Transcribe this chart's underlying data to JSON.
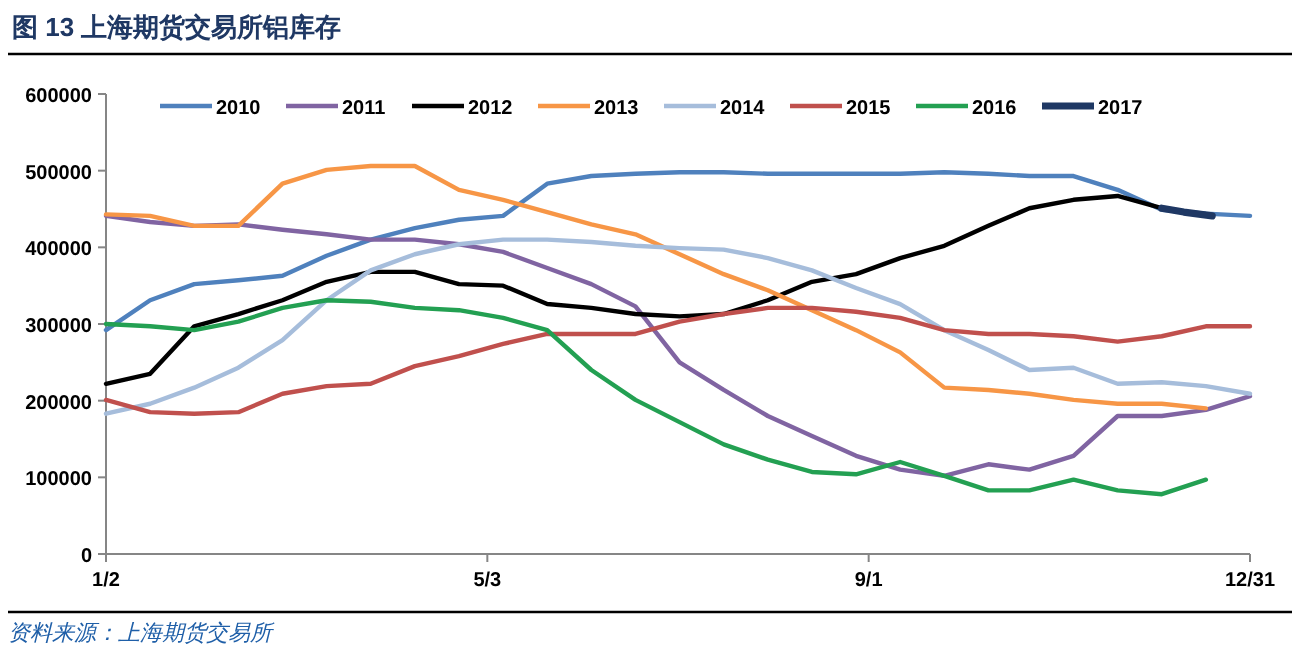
{
  "chart_data": {
    "type": "line",
    "title": "图 13    上海期货交易所铝库存",
    "annotations": [
      "资料来源：上海期货交易所"
    ],
    "x": [
      "--01-02",
      "--01-16",
      "--01-30",
      "--02-13",
      "--02-27",
      "--03-13",
      "--03-27",
      "--04-10",
      "--04-24",
      "--05-08",
      "--05-22",
      "--06-05",
      "--06-19",
      "--07-03",
      "--07-17",
      "--07-31",
      "--08-14",
      "--08-28",
      "--09-11",
      "--09-25",
      "--10-09",
      "--10-22",
      "--11-05",
      "--11-19",
      "--12-03",
      "--12-17",
      "--12-31"
    ],
    "series": [
      {
        "name": "2010",
        "color": "#4f81bd",
        "values": [
          292000,
          331000,
          352000,
          357000,
          363000,
          389000,
          410000,
          425000,
          436000,
          441000,
          483000,
          493000,
          496000,
          498000,
          498000,
          496000,
          496000,
          496000,
          496000,
          498000,
          496000,
          493000,
          493000,
          475000,
          449000,
          444000,
          441000
        ]
      },
      {
        "name": "2011",
        "color": "#8064a2",
        "values": [
          441000,
          433000,
          428000,
          430000,
          423000,
          417000,
          410000,
          410000,
          404000,
          394000,
          373000,
          352000,
          323000,
          250000,
          214000,
          180000,
          154000,
          128000,
          110000,
          102000,
          117000,
          110000,
          128000,
          180000,
          180000,
          188000,
          206000
        ]
      },
      {
        "name": "2012",
        "color": "#000000",
        "values": [
          222000,
          235000,
          297000,
          313000,
          331000,
          355000,
          368000,
          368000,
          352000,
          350000,
          326000,
          321000,
          313000,
          310000,
          313000,
          331000,
          355000,
          365000,
          386000,
          402000,
          428000,
          451000,
          462000,
          467000,
          451000,
          null,
          null
        ]
      },
      {
        "name": "2013",
        "color": "#f79646",
        "values": [
          443000,
          441000,
          428000,
          428000,
          483000,
          501000,
          506000,
          506000,
          475000,
          462000,
          446000,
          430000,
          417000,
          391000,
          365000,
          344000,
          318000,
          292000,
          263000,
          217000,
          214000,
          209000,
          201000,
          196000,
          196000,
          190000,
          null
        ]
      },
      {
        "name": "2014",
        "color": "#a6bddb",
        "values": [
          183000,
          196000,
          217000,
          243000,
          279000,
          331000,
          370000,
          391000,
          404000,
          410000,
          410000,
          407000,
          402000,
          399000,
          397000,
          386000,
          370000,
          347000,
          326000,
          292000,
          266000,
          240000,
          243000,
          222000,
          224000,
          219000,
          209000
        ]
      },
      {
        "name": "2015",
        "color": "#c0504d",
        "values": [
          201000,
          185000,
          183000,
          185000,
          209000,
          219000,
          222000,
          245000,
          258000,
          274000,
          287000,
          287000,
          287000,
          303000,
          313000,
          321000,
          321000,
          316000,
          308000,
          292000,
          287000,
          287000,
          284000,
          277000,
          284000,
          297000,
          297000
        ]
      },
      {
        "name": "2016",
        "color": "#23a052",
        "values": [
          300000,
          297000,
          292000,
          303000,
          321000,
          331000,
          329000,
          321000,
          318000,
          308000,
          292000,
          240000,
          201000,
          172000,
          143000,
          123000,
          107000,
          104000,
          120000,
          102000,
          83000,
          83000,
          97000,
          83000,
          78000,
          97000,
          null
        ]
      },
      {
        "name": "2017",
        "color": "#1f3864",
        "x": [
          "--12-03",
          "--12-10",
          "--12-19"
        ],
        "values": [
          451000,
          446000,
          441000
        ]
      }
    ],
    "xlim": [
      "--01-02",
      "--12-31"
    ],
    "xticks": [
      {
        "value": "--01-02",
        "label": "1/2"
      },
      {
        "value": "--05-03",
        "label": "5/3"
      },
      {
        "value": "--09-01",
        "label": "9/1"
      },
      {
        "value": "--12-31",
        "label": "12/31"
      }
    ],
    "ylim": [
      0,
      600000
    ],
    "yticks": [
      0,
      100000,
      200000,
      300000,
      400000,
      500000,
      600000
    ],
    "grid": false,
    "legend": "top"
  }
}
